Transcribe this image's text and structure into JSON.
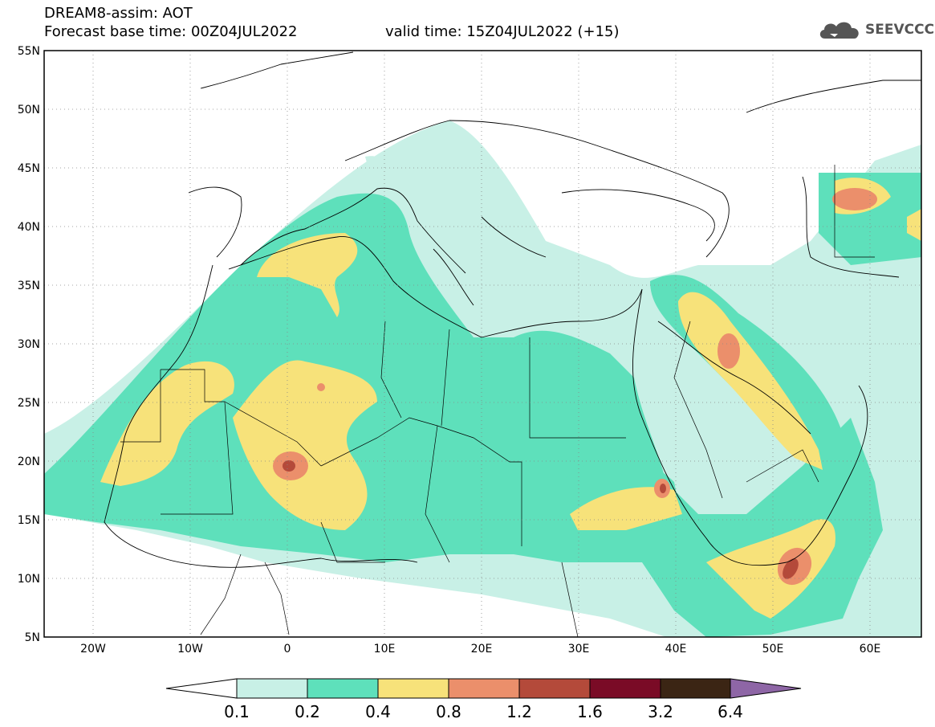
{
  "header": {
    "title": "DREAM8-assim: AOT",
    "base_time": "Forecast base time: 00Z04JUL2022",
    "valid_time": "valid time: 15Z04JUL2022 (+15)"
  },
  "logo": {
    "text": "SEEVCCC",
    "icon": "cloud-icon"
  },
  "map": {
    "lon_range": [
      -25,
      65
    ],
    "lat_range": [
      5,
      55
    ],
    "lon_ticks": [
      "20W",
      "10W",
      "0",
      "10E",
      "20E",
      "30E",
      "40E",
      "50E",
      "60E"
    ],
    "lat_ticks": [
      "55N",
      "50N",
      "45N",
      "40N",
      "35N",
      "30N",
      "25N",
      "20N",
      "15N",
      "10N",
      "5N"
    ],
    "grid": "dotted"
  },
  "colorbar": {
    "labels": [
      "0.1",
      "0.2",
      "0.4",
      "0.8",
      "1.2",
      "1.6",
      "3.2",
      "6.4"
    ],
    "colors": [
      "#ffffff",
      "#c8f0e6",
      "#5ee0bb",
      "#f7e27a",
      "#eb8f6b",
      "#b44a3a",
      "#7a0b26",
      "#3b2514",
      "#8e66a6"
    ]
  },
  "colors": {
    "c1": "#c8f0e6",
    "c2": "#5ee0bb",
    "c3": "#f7e27a",
    "c4": "#eb8f6b",
    "c5": "#b44a3a"
  }
}
